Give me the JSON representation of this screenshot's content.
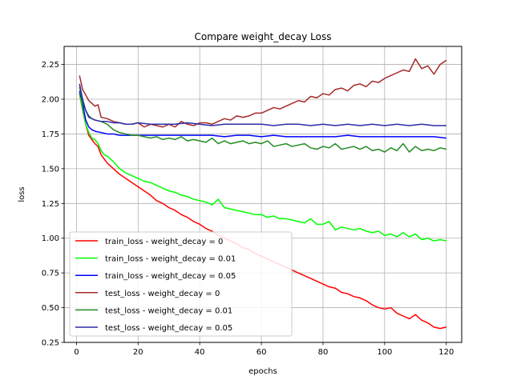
{
  "chart_data": {
    "type": "line",
    "title": "Compare weight_decay Loss",
    "xlabel": "epochs",
    "ylabel": "loss",
    "xlim": [
      -4,
      125
    ],
    "ylim": [
      0.25,
      2.38
    ],
    "xticks": [
      0,
      20,
      40,
      60,
      80,
      100,
      120
    ],
    "yticks": [
      0.25,
      0.5,
      0.75,
      1.0,
      1.25,
      1.5,
      1.75,
      2.0,
      2.25
    ],
    "ytick_labels": [
      "0.25",
      "0.50",
      "0.75",
      "1.00",
      "1.25",
      "1.50",
      "1.75",
      "2.00",
      "2.25"
    ],
    "grid": true,
    "legend_position": "lower-left",
    "series": [
      {
        "name": "train_loss - weight_decay = 0",
        "color": "#ff0000",
        "x": [
          1,
          2,
          3,
          4,
          5,
          6,
          7,
          8,
          9,
          10,
          12,
          14,
          16,
          18,
          20,
          22,
          24,
          26,
          28,
          30,
          32,
          34,
          36,
          38,
          40,
          42,
          44,
          46,
          48,
          50,
          52,
          54,
          56,
          58,
          60,
          62,
          64,
          66,
          68,
          70,
          72,
          74,
          76,
          78,
          80,
          82,
          84,
          86,
          88,
          90,
          92,
          94,
          96,
          98,
          100,
          102,
          104,
          106,
          108,
          110,
          112,
          114,
          116,
          118,
          120
        ],
        "y": [
          2.04,
          1.92,
          1.82,
          1.74,
          1.71,
          1.68,
          1.66,
          1.6,
          1.57,
          1.54,
          1.5,
          1.46,
          1.43,
          1.4,
          1.37,
          1.34,
          1.31,
          1.27,
          1.25,
          1.22,
          1.2,
          1.17,
          1.15,
          1.12,
          1.1,
          1.07,
          1.05,
          1.02,
          1.0,
          0.98,
          0.96,
          0.93,
          0.92,
          0.89,
          0.87,
          0.85,
          0.83,
          0.81,
          0.79,
          0.77,
          0.75,
          0.73,
          0.71,
          0.69,
          0.67,
          0.65,
          0.64,
          0.61,
          0.6,
          0.58,
          0.57,
          0.55,
          0.52,
          0.5,
          0.49,
          0.5,
          0.46,
          0.44,
          0.42,
          0.45,
          0.41,
          0.39,
          0.36,
          0.35,
          0.36
        ]
      },
      {
        "name": "train_loss - weight_decay = 0.01",
        "color": "#00ff00",
        "x": [
          1,
          2,
          3,
          4,
          5,
          6,
          7,
          8,
          9,
          10,
          12,
          14,
          16,
          18,
          20,
          22,
          24,
          26,
          28,
          30,
          32,
          34,
          36,
          38,
          40,
          42,
          44,
          46,
          48,
          50,
          52,
          54,
          56,
          58,
          60,
          62,
          64,
          66,
          68,
          70,
          72,
          74,
          76,
          78,
          80,
          82,
          84,
          86,
          88,
          90,
          92,
          94,
          96,
          98,
          100,
          102,
          104,
          106,
          108,
          110,
          112,
          114,
          116,
          118,
          120
        ],
        "y": [
          2.05,
          1.93,
          1.82,
          1.76,
          1.72,
          1.71,
          1.68,
          1.63,
          1.6,
          1.59,
          1.55,
          1.5,
          1.47,
          1.45,
          1.43,
          1.41,
          1.4,
          1.38,
          1.36,
          1.34,
          1.33,
          1.31,
          1.3,
          1.28,
          1.27,
          1.26,
          1.24,
          1.28,
          1.22,
          1.21,
          1.2,
          1.19,
          1.18,
          1.17,
          1.17,
          1.15,
          1.16,
          1.14,
          1.14,
          1.13,
          1.12,
          1.11,
          1.14,
          1.1,
          1.1,
          1.12,
          1.06,
          1.08,
          1.07,
          1.06,
          1.07,
          1.05,
          1.04,
          1.05,
          1.02,
          1.03,
          1.01,
          1.04,
          1.01,
          1.03,
          0.99,
          1.0,
          0.98,
          0.99,
          0.98
        ]
      },
      {
        "name": "train_loss - weight_decay = 0.05",
        "color": "#0000ff",
        "x": [
          1,
          2,
          3,
          4,
          5,
          6,
          8,
          10,
          12,
          14,
          16,
          18,
          20,
          24,
          28,
          32,
          36,
          40,
          44,
          48,
          52,
          56,
          60,
          64,
          68,
          72,
          76,
          80,
          84,
          88,
          92,
          96,
          100,
          104,
          108,
          112,
          116,
          120
        ],
        "y": [
          2.06,
          1.97,
          1.85,
          1.8,
          1.78,
          1.77,
          1.76,
          1.75,
          1.75,
          1.74,
          1.74,
          1.74,
          1.74,
          1.74,
          1.74,
          1.74,
          1.74,
          1.74,
          1.74,
          1.73,
          1.74,
          1.74,
          1.73,
          1.74,
          1.73,
          1.73,
          1.73,
          1.73,
          1.73,
          1.74,
          1.73,
          1.73,
          1.73,
          1.73,
          1.73,
          1.73,
          1.73,
          1.72
        ]
      },
      {
        "name": "test_loss - weight_decay = 0",
        "color": "#a52a2a",
        "x": [
          1,
          2,
          3,
          4,
          5,
          6,
          7,
          8,
          10,
          12,
          14,
          16,
          18,
          20,
          22,
          24,
          26,
          28,
          30,
          32,
          34,
          36,
          38,
          40,
          42,
          44,
          46,
          48,
          50,
          52,
          54,
          56,
          58,
          60,
          62,
          64,
          66,
          68,
          70,
          72,
          74,
          76,
          78,
          80,
          82,
          84,
          86,
          88,
          90,
          92,
          94,
          96,
          98,
          100,
          102,
          104,
          106,
          108,
          110,
          112,
          114,
          116,
          118,
          120
        ],
        "y": [
          2.17,
          2.07,
          2.03,
          1.99,
          1.97,
          1.95,
          1.96,
          1.87,
          1.86,
          1.84,
          1.83,
          1.82,
          1.82,
          1.83,
          1.8,
          1.82,
          1.81,
          1.8,
          1.82,
          1.8,
          1.84,
          1.82,
          1.81,
          1.83,
          1.83,
          1.82,
          1.84,
          1.86,
          1.85,
          1.88,
          1.87,
          1.88,
          1.9,
          1.9,
          1.92,
          1.94,
          1.93,
          1.95,
          1.97,
          1.99,
          1.98,
          2.02,
          2.01,
          2.04,
          2.03,
          2.07,
          2.08,
          2.06,
          2.1,
          2.11,
          2.09,
          2.13,
          2.12,
          2.15,
          2.17,
          2.19,
          2.21,
          2.2,
          2.29,
          2.22,
          2.24,
          2.18,
          2.25,
          2.28
        ]
      },
      {
        "name": "test_loss - weight_decay = 0.01",
        "color": "#228b22",
        "x": [
          1,
          2,
          3,
          4,
          5,
          6,
          8,
          10,
          12,
          14,
          16,
          18,
          20,
          22,
          24,
          26,
          28,
          30,
          32,
          34,
          36,
          38,
          40,
          42,
          44,
          46,
          48,
          50,
          52,
          54,
          56,
          58,
          60,
          62,
          64,
          66,
          68,
          70,
          72,
          74,
          76,
          78,
          80,
          82,
          84,
          86,
          88,
          90,
          92,
          94,
          96,
          98,
          100,
          102,
          104,
          106,
          108,
          110,
          112,
          114,
          116,
          118,
          120
        ],
        "y": [
          2.09,
          1.98,
          1.92,
          1.88,
          1.86,
          1.85,
          1.84,
          1.82,
          1.78,
          1.76,
          1.75,
          1.74,
          1.74,
          1.73,
          1.72,
          1.73,
          1.71,
          1.72,
          1.71,
          1.73,
          1.7,
          1.71,
          1.7,
          1.69,
          1.72,
          1.68,
          1.7,
          1.68,
          1.69,
          1.7,
          1.68,
          1.69,
          1.68,
          1.7,
          1.66,
          1.67,
          1.68,
          1.66,
          1.67,
          1.68,
          1.65,
          1.64,
          1.66,
          1.65,
          1.68,
          1.64,
          1.65,
          1.66,
          1.64,
          1.66,
          1.63,
          1.64,
          1.62,
          1.65,
          1.63,
          1.68,
          1.62,
          1.66,
          1.63,
          1.64,
          1.63,
          1.65,
          1.64
        ]
      },
      {
        "name": "test_loss - weight_decay = 0.05",
        "color": "#2c2ca8",
        "x": [
          1,
          2,
          3,
          4,
          5,
          6,
          8,
          10,
          12,
          14,
          16,
          18,
          20,
          24,
          28,
          32,
          36,
          40,
          44,
          48,
          52,
          56,
          60,
          64,
          68,
          72,
          76,
          80,
          84,
          88,
          92,
          96,
          100,
          104,
          108,
          112,
          116,
          120
        ],
        "y": [
          2.11,
          2.0,
          1.92,
          1.87,
          1.86,
          1.85,
          1.84,
          1.84,
          1.83,
          1.83,
          1.82,
          1.82,
          1.83,
          1.82,
          1.82,
          1.82,
          1.83,
          1.82,
          1.81,
          1.82,
          1.82,
          1.82,
          1.82,
          1.81,
          1.82,
          1.82,
          1.81,
          1.82,
          1.81,
          1.82,
          1.81,
          1.82,
          1.81,
          1.82,
          1.81,
          1.82,
          1.81,
          1.81
        ]
      }
    ]
  }
}
